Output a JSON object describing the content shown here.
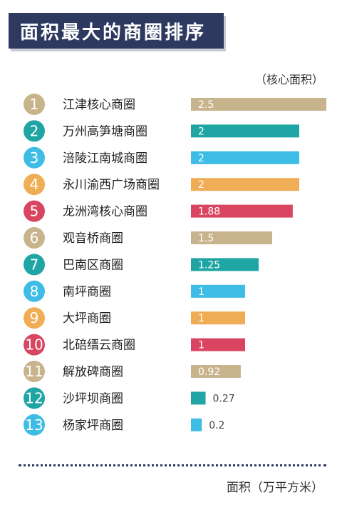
{
  "header": {
    "title": "面积最大的商圈排序"
  },
  "chart_data": {
    "type": "bar",
    "orientation": "horizontal",
    "title": "面积最大的商圈排序",
    "unit_label": "（核心面积）",
    "xlabel": "面积（万平方米）",
    "grid": false,
    "xlim": [
      0,
      2.5
    ],
    "rows": [
      {
        "rank": "1",
        "name": "江津核心商圈",
        "value": 2.5,
        "label": "2.5",
        "color": "#c8b48c"
      },
      {
        "rank": "2",
        "name": "万州高笋塘商圈",
        "value": 2,
        "label": "2",
        "color": "#1fa5a3"
      },
      {
        "rank": "3",
        "name": "涪陵江南城商圈",
        "value": 2,
        "label": "2",
        "color": "#3dbde6"
      },
      {
        "rank": "4",
        "name": "永川渝西广场商圈",
        "value": 2,
        "label": "2",
        "color": "#f0ad55"
      },
      {
        "rank": "5",
        "name": "龙洲湾核心商圈",
        "value": 1.88,
        "label": "1.88",
        "color": "#d94561"
      },
      {
        "rank": "6",
        "name": "观音桥商圈",
        "value": 1.5,
        "label": "1.5",
        "color": "#c8b48c"
      },
      {
        "rank": "7",
        "name": "巴南区商圈",
        "value": 1.25,
        "label": "1.25",
        "color": "#1fa5a3"
      },
      {
        "rank": "8",
        "name": "南坪商圈",
        "value": 1,
        "label": "1",
        "color": "#3dbde6"
      },
      {
        "rank": "9",
        "name": "大坪商圈",
        "value": 1,
        "label": "1",
        "color": "#f0ad55"
      },
      {
        "rank": "10",
        "name": "北碚缙云商圈",
        "value": 1,
        "label": "1",
        "color": "#d94561"
      },
      {
        "rank": "11",
        "name": "解放碑商圈",
        "value": 0.92,
        "label": "0.92",
        "color": "#c8b48c"
      },
      {
        "rank": "12",
        "name": "沙坪坝商圈",
        "value": 0.27,
        "label": "0.27",
        "color": "#1fa5a3"
      },
      {
        "rank": "13",
        "name": "杨家坪商圈",
        "value": 0.2,
        "label": "0.2",
        "color": "#3dbde6"
      }
    ]
  }
}
